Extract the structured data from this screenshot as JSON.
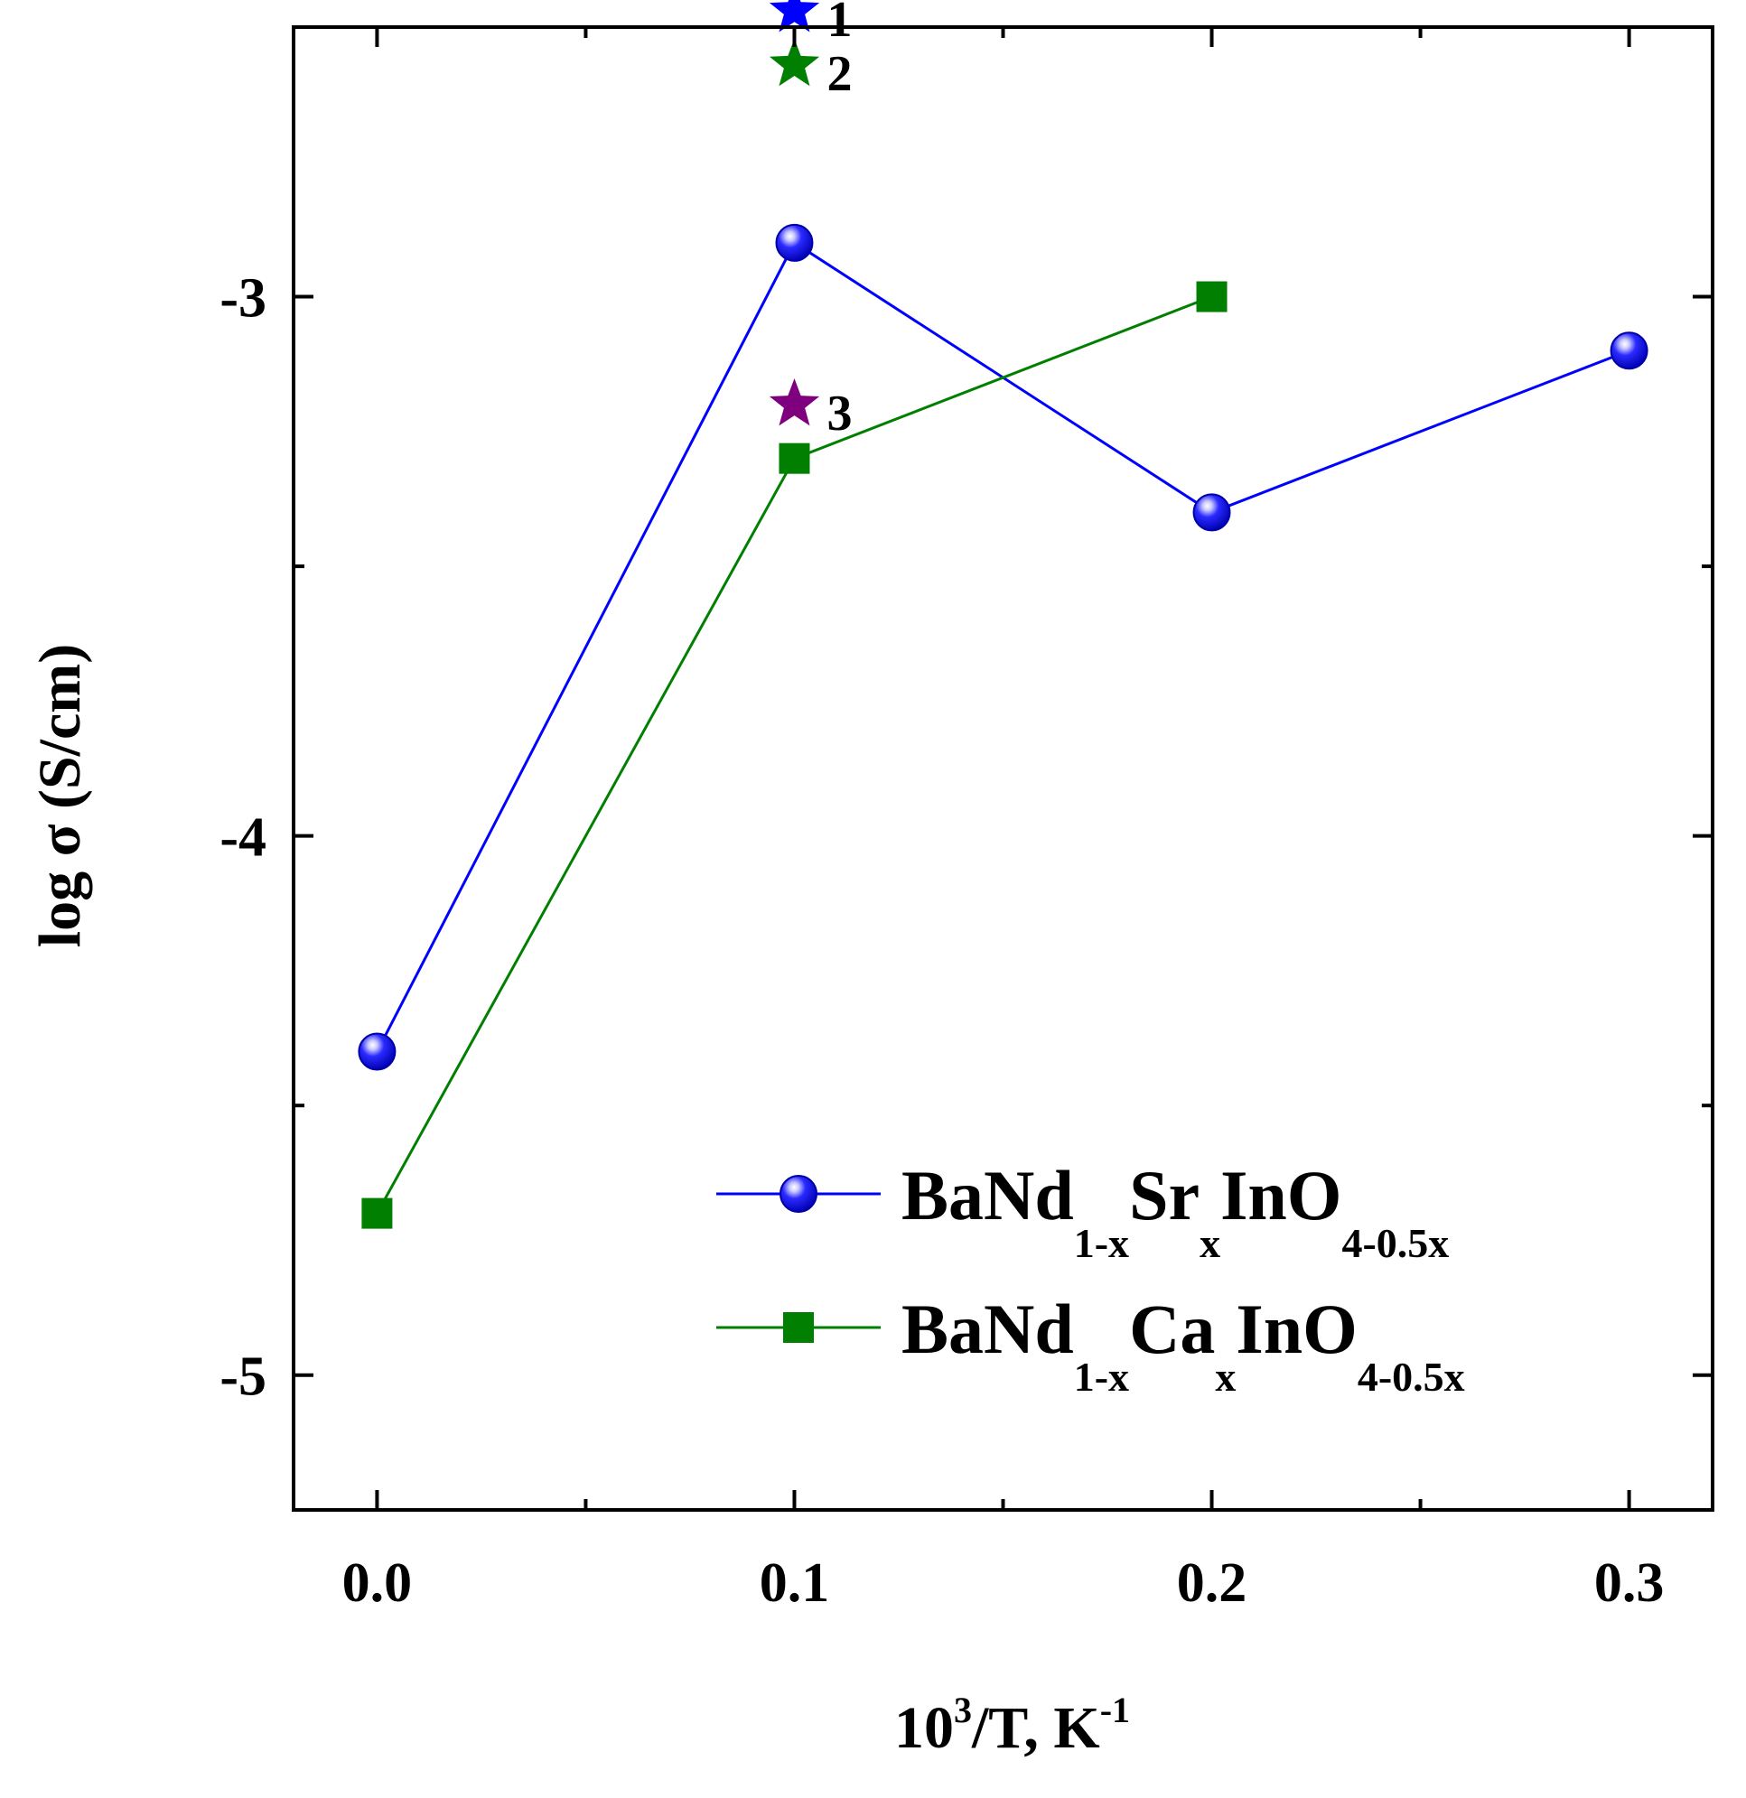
{
  "chart_data": {
    "type": "line",
    "title": "",
    "xlabel": "10",
    "xlabel_sup": "3",
    "xlabel_rest": "/T, K",
    "xlabel_sup2": "-1",
    "ylabel": "log σ (S/cm)",
    "xlim": [
      -0.02,
      0.32
    ],
    "ylim": [
      -5.25,
      -2.5
    ],
    "x_ticks": [
      0.0,
      0.1,
      0.2,
      0.3
    ],
    "x_tick_labels": [
      "0.0",
      "0.1",
      "0.2",
      "0.3"
    ],
    "x_minor_ticks": [
      0.05,
      0.15,
      0.25
    ],
    "y_ticks": [
      -5,
      -4,
      -3
    ],
    "y_tick_labels": [
      "-5",
      "-4",
      "-3"
    ],
    "y_minor_ticks": [
      -4.5,
      -3.5
    ],
    "grid": false,
    "legend_position": "bottom-right",
    "series": [
      {
        "name": "BaNd1-xSrxInO4-0.5x",
        "legend_parts": [
          {
            "text": "BaNd",
            "sub": false
          },
          {
            "text": "1-x",
            "sub": true
          },
          {
            "text": "Sr",
            "sub": false
          },
          {
            "text": "x",
            "sub": true
          },
          {
            "text": "InO",
            "sub": false
          },
          {
            "text": "4-0.5x",
            "sub": true
          }
        ],
        "color": "#0000ff",
        "marker": "sphere",
        "x": [
          0.0,
          0.1,
          0.2,
          0.3
        ],
        "values": [
          -4.4,
          -2.9,
          -3.4,
          -3.1
        ]
      },
      {
        "name": "BaNd1-xCaxInO4-0.5x",
        "legend_parts": [
          {
            "text": "BaNd",
            "sub": false
          },
          {
            "text": "1-x",
            "sub": true
          },
          {
            "text": "Ca",
            "sub": false
          },
          {
            "text": "x",
            "sub": true
          },
          {
            "text": "InO",
            "sub": false
          },
          {
            "text": "4-0.5x",
            "sub": true
          }
        ],
        "color": "#007f00",
        "marker": "square",
        "x": [
          0.0,
          0.1,
          0.2
        ],
        "values": [
          -4.7,
          -3.3,
          -3.0
        ]
      }
    ],
    "annotations": [
      {
        "label": "1",
        "x": 0.1,
        "y": -2.47,
        "color": "#0000ff",
        "marker": "star"
      },
      {
        "label": "2",
        "x": 0.1,
        "y": -2.57,
        "color": "#007f00",
        "marker": "star"
      },
      {
        "label": "3",
        "x": 0.1,
        "y": -3.2,
        "color": "#7f007f",
        "marker": "star"
      }
    ]
  }
}
